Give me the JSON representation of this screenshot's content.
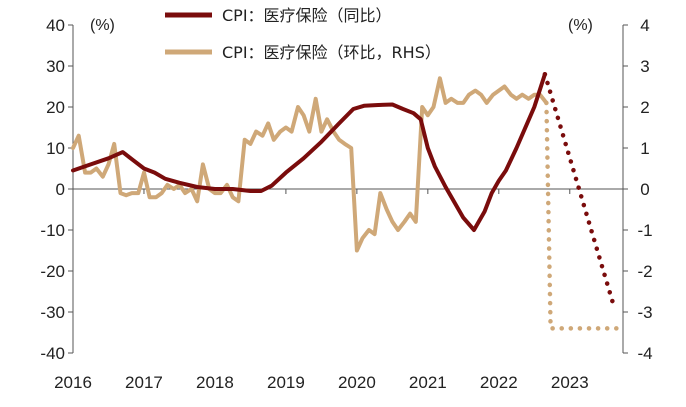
{
  "chart_data": {
    "type": "line",
    "title": "",
    "y_unit_left": "(%)",
    "y_unit_right": "(%)",
    "ylim_left": [
      -40,
      40
    ],
    "ylim_right": [
      -4,
      4
    ],
    "y_ticks_left": [
      "40",
      "30",
      "20",
      "10",
      "0",
      "-10",
      "-20",
      "-30",
      "-40"
    ],
    "y_ticks_right": [
      "4",
      "3",
      "2",
      "1",
      "0",
      "-1",
      "-2",
      "-3",
      "-4"
    ],
    "x_ticks": [
      "2016",
      "2017",
      "2018",
      "2019",
      "2020",
      "2021",
      "2022",
      "2023"
    ],
    "x_range": [
      2016.0,
      2023.75
    ],
    "legend": [
      {
        "label": "CPI：医疗保险（同比）",
        "color": "#7a0c0c"
      },
      {
        "label": "CPI：医疗保险（环比，RHS）",
        "color": "#cfa878"
      }
    ],
    "series": [
      {
        "name": "CPI：医疗保险（同比）",
        "axis": "left",
        "color": "#7a0c0c",
        "x": [
          2016.0,
          2016.25,
          2016.5,
          2016.7,
          2016.85,
          2017.0,
          2017.15,
          2017.3,
          2017.5,
          2017.75,
          2018.0,
          2018.25,
          2018.5,
          2018.65,
          2018.8,
          2019.0,
          2019.25,
          2019.5,
          2019.75,
          2019.95,
          2020.1,
          2020.3,
          2020.5,
          2020.65,
          2020.8,
          2020.9,
          2021.0,
          2021.1,
          2021.25,
          2021.5,
          2021.65,
          2021.8,
          2021.9,
          2022.0,
          2022.1,
          2022.25,
          2022.5,
          2022.65
        ],
        "values": [
          4.5,
          6,
          7.5,
          9,
          7,
          5,
          4,
          2.5,
          1.5,
          0.5,
          0,
          0,
          -0.5,
          -0.5,
          0.8,
          4,
          7.5,
          11.5,
          16,
          19.5,
          20.3,
          20.5,
          20.6,
          19.5,
          18.5,
          17,
          10,
          5.5,
          0.5,
          -7,
          -10,
          -5.5,
          -1,
          2,
          4.5,
          10,
          20,
          28
        ]
      },
      {
        "name": "CPI：医疗保险（同比）预测",
        "axis": "left",
        "color": "#7a0c0c",
        "style": "dotted",
        "x": [
          2022.65,
          2023.62
        ],
        "values": [
          28,
          -28.5
        ]
      },
      {
        "name": "CPI：医疗保险（环比，RHS）",
        "axis": "right",
        "color": "#cfa878",
        "x": [
          2016.0,
          2016.08,
          2016.17,
          2016.25,
          2016.33,
          2016.42,
          2016.5,
          2016.58,
          2016.67,
          2016.75,
          2016.83,
          2016.92,
          2017.0,
          2017.08,
          2017.17,
          2017.25,
          2017.33,
          2017.42,
          2017.5,
          2017.58,
          2017.67,
          2017.75,
          2017.83,
          2017.92,
          2018.0,
          2018.08,
          2018.17,
          2018.25,
          2018.33,
          2018.42,
          2018.5,
          2018.58,
          2018.67,
          2018.75,
          2018.83,
          2018.92,
          2019.0,
          2019.08,
          2019.17,
          2019.25,
          2019.33,
          2019.42,
          2019.5,
          2019.58,
          2019.67,
          2019.75,
          2019.83,
          2019.92,
          2020.0,
          2020.08,
          2020.17,
          2020.25,
          2020.33,
          2020.42,
          2020.5,
          2020.58,
          2020.67,
          2020.75,
          2020.83,
          2020.92,
          2021.0,
          2021.08,
          2021.17,
          2021.25,
          2021.33,
          2021.42,
          2021.5,
          2021.58,
          2021.67,
          2021.75,
          2021.83,
          2021.92,
          2022.0,
          2022.08,
          2022.17,
          2022.25,
          2022.33,
          2022.42,
          2022.5,
          2022.58,
          2022.67
        ],
        "values": [
          1.0,
          1.3,
          0.4,
          0.4,
          0.5,
          0.3,
          0.6,
          1.1,
          -0.1,
          -0.15,
          -0.1,
          -0.1,
          0.4,
          -0.2,
          -0.2,
          -0.1,
          0.1,
          0.0,
          0.1,
          -0.1,
          0.0,
          -0.3,
          0.6,
          0.0,
          -0.1,
          -0.1,
          0.1,
          -0.2,
          -0.3,
          1.2,
          1.1,
          1.4,
          1.3,
          1.6,
          1.2,
          1.4,
          1.5,
          1.4,
          2.0,
          1.8,
          1.4,
          2.2,
          1.4,
          1.7,
          1.4,
          1.2,
          1.1,
          1.0,
          -1.5,
          -1.2,
          -1.0,
          -1.1,
          -0.1,
          -0.5,
          -0.8,
          -1.0,
          -0.8,
          -0.6,
          -0.8,
          2.0,
          1.8,
          2.0,
          2.7,
          2.1,
          2.2,
          2.1,
          2.1,
          2.3,
          2.4,
          2.3,
          2.1,
          2.3,
          2.4,
          2.5,
          2.3,
          2.2,
          2.3,
          2.2,
          2.3,
          2.3,
          2.1
        ]
      },
      {
        "name": "CPI：医疗保险（环比，RHS）预测",
        "axis": "right",
        "color": "#cfa878",
        "style": "dotted",
        "x": [
          2022.67,
          2022.73,
          2023.7
        ],
        "values": [
          2.1,
          -3.4,
          -3.4
        ]
      }
    ]
  }
}
